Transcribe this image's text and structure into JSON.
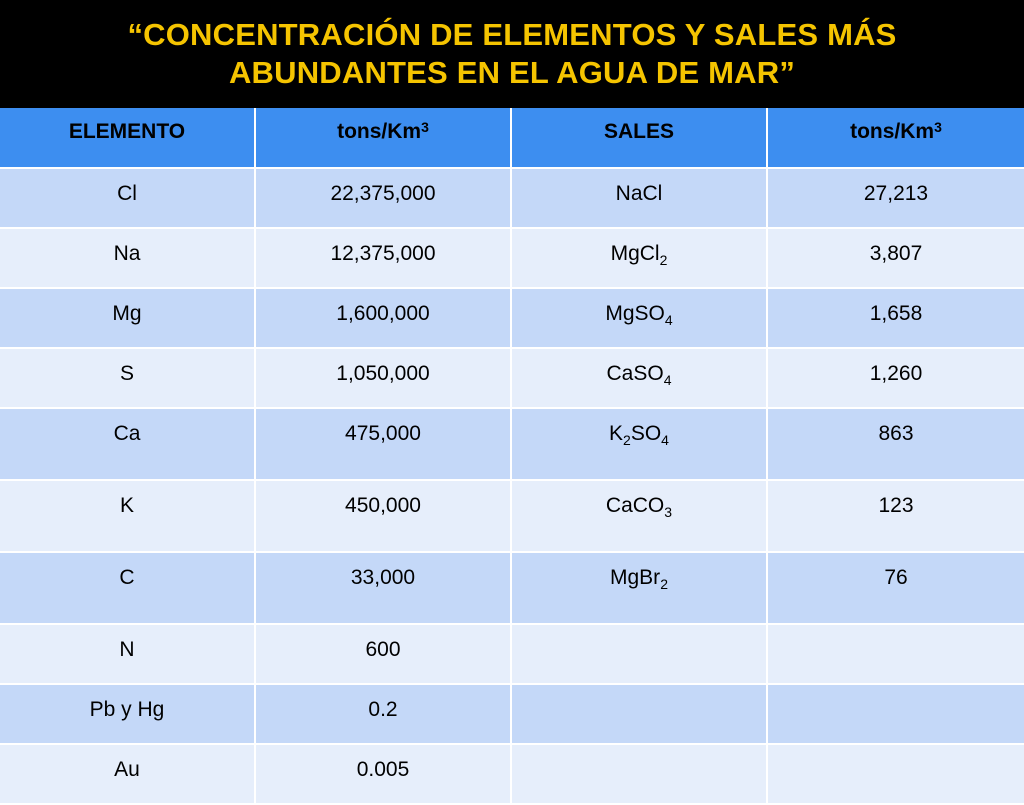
{
  "title": {
    "line1": "“CONCENTRACIÓN DE ELEMENTOS Y SALES MÁS",
    "line2": "ABUNDANTES EN EL AGUA DE MAR”"
  },
  "headers": {
    "elemento": "ELEMENTO",
    "tons1_base": "tons/Km",
    "tons1_sup": "3",
    "sales": "SALES",
    "tons2_base": "tons/Km",
    "tons2_sup": "3"
  },
  "rows": [
    {
      "element": "Cl",
      "tons": "22,375,000",
      "salt": [
        "NaCl",
        ""
      ],
      "salt_tons": "27,213"
    },
    {
      "element": "Na",
      "tons": "12,375,000",
      "salt": [
        "MgCl",
        "2",
        ""
      ],
      "salt_tons": "3,807"
    },
    {
      "element": "Mg",
      "tons": "1,600,000",
      "salt": [
        "MgSO",
        "4",
        ""
      ],
      "salt_tons": "1,658"
    },
    {
      "element": "S",
      "tons": "1,050,000",
      "salt": [
        "CaSO",
        "4",
        ""
      ],
      "salt_tons": "1,260"
    },
    {
      "element": "Ca",
      "tons": "475,000",
      "salt": [
        "K",
        "2",
        "SO",
        "4"
      ],
      "salt_tons": "863"
    },
    {
      "element": "K",
      "tons": "450,000",
      "salt": [
        "CaCO",
        "3",
        ""
      ],
      "salt_tons": "123"
    },
    {
      "element": "C",
      "tons": "33,000",
      "salt": [
        "MgBr",
        "2",
        ""
      ],
      "salt_tons": "76"
    },
    {
      "element": "N",
      "tons": "600",
      "salt": [
        ""
      ],
      "salt_tons": ""
    },
    {
      "element": "Pb y Hg",
      "tons": "0.2",
      "salt": [
        ""
      ],
      "salt_tons": ""
    },
    {
      "element": "Au",
      "tons": "0.005",
      "salt": [
        ""
      ],
      "salt_tons": ""
    }
  ]
}
